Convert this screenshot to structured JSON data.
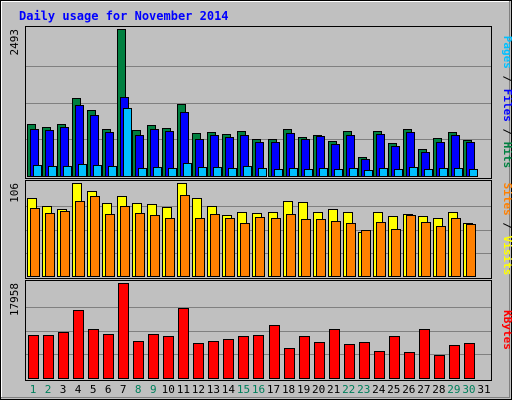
{
  "chart_data": {
    "type": "bar",
    "title": "Daily usage for November 2014",
    "categories": [
      "1",
      "2",
      "3",
      "4",
      "5",
      "6",
      "7",
      "8",
      "9",
      "10",
      "11",
      "12",
      "13",
      "14",
      "15",
      "16",
      "17",
      "18",
      "19",
      "20",
      "21",
      "22",
      "23",
      "24",
      "25",
      "26",
      "27",
      "28",
      "29",
      "30",
      "31"
    ],
    "weekend_days": [
      "1",
      "2",
      "8",
      "9",
      "15",
      "16",
      "22",
      "23",
      "29",
      "30"
    ],
    "grid": true,
    "panels": [
      {
        "id": "pages-files-hits",
        "ymax_label": "2493",
        "ylim": [
          0,
          2493
        ],
        "legend": [
          {
            "text": "Pages",
            "color": "#00c0ff"
          },
          {
            "text": " / ",
            "color": "#000000"
          },
          {
            "text": "Files",
            "color": "#0000ff"
          },
          {
            "text": " / ",
            "color": "#000000"
          },
          {
            "text": "Hits",
            "color": "#008040"
          }
        ],
        "series": [
          {
            "name": "Hits",
            "color": "#008040",
            "values": [
              880,
              825,
              885,
              1330,
              1120,
              790,
              2493,
              775,
              865,
              815,
              1225,
              730,
              750,
              710,
              765,
              630,
              630,
              805,
              660,
              700,
              595,
              755,
              320,
              760,
              560,
              790,
              455,
              640,
              740,
              615,
              0
            ]
          },
          {
            "name": "Files",
            "color": "#0000ff",
            "values": [
              800,
              775,
              830,
              1200,
              1030,
              745,
              1340,
              700,
              805,
              760,
              1090,
              620,
              690,
              655,
              695,
              585,
              575,
              735,
              625,
              675,
              540,
              700,
              290,
              720,
              515,
              745,
              410,
              580,
              690,
              575,
              0
            ]
          },
          {
            "name": "Pages",
            "color": "#00c0ff",
            "values": [
              185,
              170,
              165,
              205,
              190,
              170,
              1160,
              130,
              160,
              130,
              215,
              150,
              145,
              140,
              175,
              130,
              125,
              140,
              125,
              130,
              125,
              140,
              95,
              140,
              120,
              150,
              115,
              130,
              140,
              115,
              0
            ]
          }
        ]
      },
      {
        "id": "visits-sites",
        "ymax_label": "106",
        "ylim": [
          0,
          106
        ],
        "legend": [
          {
            "text": "Sites",
            "color": "#ff8000"
          },
          {
            "text": " / ",
            "color": "#000000"
          },
          {
            "text": "Visits",
            "color": "#ffff00"
          }
        ],
        "series": [
          {
            "name": "Visits",
            "color": "#ffff00",
            "values": [
              89,
              80,
              76,
              106,
              97,
              83,
              91,
              83,
              82,
              79,
              106,
              89,
              80,
              69,
              73,
              72,
              73,
              86,
              84,
              73,
              76,
              73,
              50,
              73,
              68,
              71,
              68,
              66,
              73,
              60,
              0
            ]
          },
          {
            "name": "Sites",
            "color": "#ff8000",
            "values": [
              77,
              72,
              74,
              85,
              91,
              71,
              80,
              72,
              70,
              66,
              92,
              66,
              71,
              66,
              60,
              67,
              66,
              71,
              65,
              65,
              63,
              60,
              52,
              61,
              54,
              69,
              61,
              57,
              66,
              59,
              0
            ]
          }
        ]
      },
      {
        "id": "kbytes",
        "ymax_label": "17958",
        "ylim": [
          0,
          17958
        ],
        "legend": [
          {
            "text": "KBytes",
            "color": "#ff0000"
          }
        ],
        "series": [
          {
            "name": "KBytes",
            "color": "#ff0000",
            "values": [
              8060,
              8060,
              8700,
              12800,
              9200,
              8250,
              17958,
              7080,
              8240,
              7990,
              13200,
              6550,
              6990,
              7450,
              7850,
              8130,
              9940,
              5680,
              8030,
              6810,
              9220,
              6350,
              6890,
              5150,
              8020,
              4850,
              9200,
              4330,
              6300,
              6550,
              0
            ]
          }
        ]
      }
    ]
  }
}
